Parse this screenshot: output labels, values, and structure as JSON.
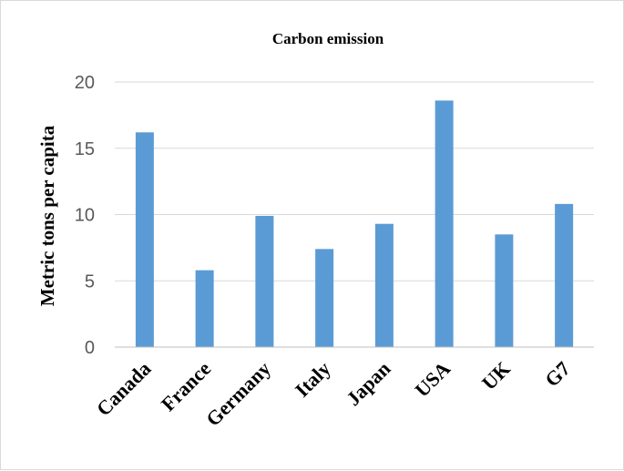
{
  "chart_data": {
    "type": "bar",
    "title": "Carbon emission",
    "xlabel": "",
    "ylabel": "Metric tons per capita",
    "categories": [
      "Canada",
      "France",
      "Germany",
      "Italy",
      "Japan",
      "USA",
      "UK",
      "G7"
    ],
    "values": [
      16.2,
      5.8,
      9.9,
      7.4,
      9.3,
      18.6,
      8.5,
      10.8
    ],
    "ylim": [
      0,
      20
    ],
    "yticks": [
      0,
      5,
      10,
      15,
      20
    ],
    "grid": true,
    "legend": "none",
    "bar_color": "#5b9bd5"
  }
}
